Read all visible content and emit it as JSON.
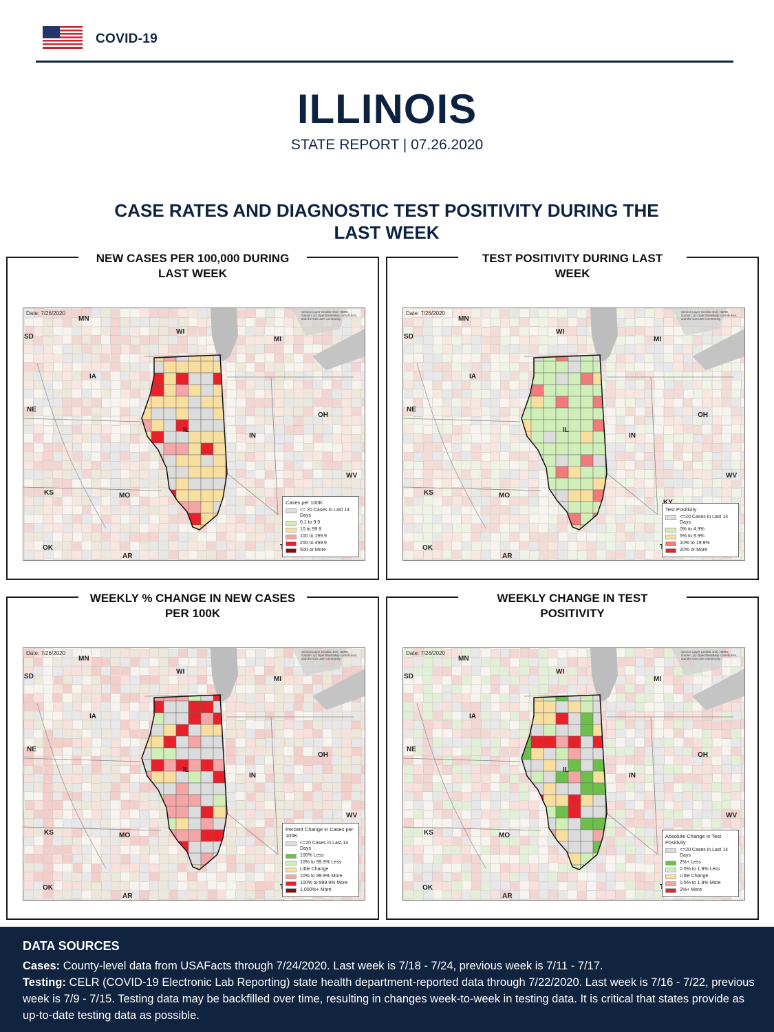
{
  "header": {
    "brand": "COVID-19",
    "flag_icon": "us-flag-icon"
  },
  "report": {
    "title": "ILLINOIS",
    "subtitle": "STATE REPORT | 07.26.2020"
  },
  "section": {
    "title": "CASE RATES AND DIAGNOSTIC TEST POSITIVITY DURING THE LAST WEEK"
  },
  "map_common": {
    "date": "Date: 7/26/2020",
    "credit": "Service Layer Credits: Esri, HERE, Garmin, (c) OpenStreetMap contributors, and the GIS user community",
    "state_labels": {
      "mn": "MN",
      "wi": "WI",
      "mi": "MI",
      "sd": "SD",
      "ia": "IA",
      "ne": "NE",
      "oh": "OH",
      "in": "IN",
      "il": "IL",
      "wv": "WV",
      "ks": "KS",
      "mo": "MO",
      "ky": "KY",
      "ok": "OK",
      "ar": "AR",
      "tn": "TN"
    }
  },
  "panels": [
    {
      "title": "NEW CASES PER 100,000 DURING LAST WEEK",
      "legend": {
        "title": "Cases per 100K",
        "items": [
          {
            "label": "<= 20 Cases in Last 14 Days",
            "color": "#dcdcdc"
          },
          {
            "label": "0.1 to 9.9",
            "color": "#cfeeb8"
          },
          {
            "label": "10 to 99.9",
            "color": "#f8dfa0"
          },
          {
            "label": "100 to 199.9",
            "color": "#f4a5a5"
          },
          {
            "label": "200 to 499.9",
            "color": "#e8202a"
          },
          {
            "label": "500 or More",
            "color": "#8b0a0a"
          }
        ]
      }
    },
    {
      "title": "TEST POSITIVITY DURING LAST WEEK",
      "legend": {
        "title": "Test Positivity",
        "items": [
          {
            "label": "<=20 Cases in Last 14 Days",
            "color": "#dcdcdc"
          },
          {
            "label": "0% to 4.9%",
            "color": "#cfeeb8"
          },
          {
            "label": "5% to 9.9%",
            "color": "#f8dfa0"
          },
          {
            "label": "10% to 19.9%",
            "color": "#f27a7a"
          },
          {
            "label": "20% or More",
            "color": "#e8202a"
          }
        ]
      }
    },
    {
      "title": "WEEKLY % CHANGE IN NEW CASES PER 100K",
      "legend": {
        "title": "Percent Change in Cases per 100K",
        "items": [
          {
            "label": "<=20 Cases in Last 14 Days",
            "color": "#dcdcdc"
          },
          {
            "label": "100% Less",
            "color": "#6cc04a"
          },
          {
            "label": "10% to 99.9% Less",
            "color": "#cfeeb8"
          },
          {
            "label": "Little Change",
            "color": "#f8dfa0"
          },
          {
            "label": "10% to 99.9% More",
            "color": "#f4a5a5"
          },
          {
            "label": "100% to 999.9% More",
            "color": "#e8202a"
          },
          {
            "label": "1,000%+ More",
            "color": "#8b0a0a"
          }
        ]
      }
    },
    {
      "title": "WEEKLY CHANGE IN TEST POSITIVITY",
      "legend": {
        "title": "Absolute Change in Test Positivity",
        "items": [
          {
            "label": "<=20 Cases in Last 14 Days",
            "color": "#dcdcdc"
          },
          {
            "label": "2%+ Less",
            "color": "#6cc04a"
          },
          {
            "label": "0.5% to 1.9% Less",
            "color": "#cfeeb8"
          },
          {
            "label": "Little Change",
            "color": "#f8dfa0"
          },
          {
            "label": "0.5% to 1.9% More",
            "color": "#f4a5a5"
          },
          {
            "label": "2%+ More",
            "color": "#e8202a"
          }
        ]
      }
    }
  ],
  "footer": {
    "title": "DATA SOURCES",
    "cases_label": "Cases:",
    "cases_text": " County-level data from USAFacts through 7/24/2020. Last week is 7/18 - 7/24, previous week is 7/11 - 7/17.",
    "testing_label": "Testing:",
    "testing_text": " CELR (COVID-19 Electronic Lab Reporting) state health department-reported data through 7/22/2020. Last week is 7/16 - 7/22, previous week is 7/9 - 7/15. Testing data may be backfilled over time, resulting in changes week-to-week in testing data. It is critical that states provide as up-to-date testing data as possible."
  }
}
